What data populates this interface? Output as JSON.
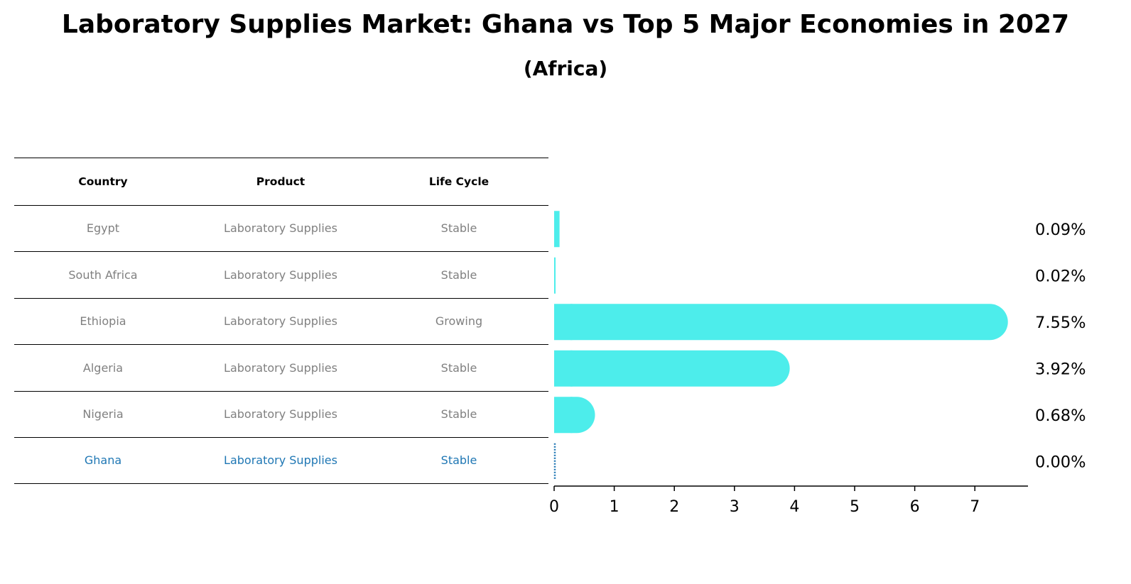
{
  "title": "Laboratory Supplies Market: Ghana vs Top 5 Major Economies in 2027",
  "subtitle": "(Africa)",
  "table": {
    "headers": [
      "Country",
      "Product",
      "Life Cycle"
    ],
    "rows": [
      {
        "country": "Egypt",
        "product": "Laboratory Supplies",
        "life_cycle": "Stable"
      },
      {
        "country": "South Africa",
        "product": "Laboratory Supplies",
        "life_cycle": "Stable"
      },
      {
        "country": "Ethiopia",
        "product": "Laboratory Supplies",
        "life_cycle": "Growing"
      },
      {
        "country": "Algeria",
        "product": "Laboratory Supplies",
        "life_cycle": "Stable"
      },
      {
        "country": "Nigeria",
        "product": "Laboratory Supplies",
        "life_cycle": "Stable"
      },
      {
        "country": "Ghana",
        "product": "Laboratory Supplies",
        "life_cycle": "Stable"
      }
    ]
  },
  "colors": {
    "bar": "#4dedeb",
    "highlight": "#1f77b4",
    "muted_text": "#808080"
  },
  "chart_data": {
    "type": "bar",
    "orientation": "horizontal",
    "categories": [
      "Egypt",
      "South Africa",
      "Ethiopia",
      "Algeria",
      "Nigeria",
      "Ghana"
    ],
    "values": [
      0.09,
      0.02,
      7.55,
      3.92,
      0.68,
      0.0
    ],
    "value_labels": [
      "0.09%",
      "0.02%",
      "7.55%",
      "3.92%",
      "0.68%",
      "0.00%"
    ],
    "highlight": "Ghana",
    "xticks": [
      "0",
      "1",
      "2",
      "3",
      "4",
      "5",
      "6",
      "7"
    ],
    "xlim": [
      0,
      7.9
    ],
    "grid": false
  }
}
